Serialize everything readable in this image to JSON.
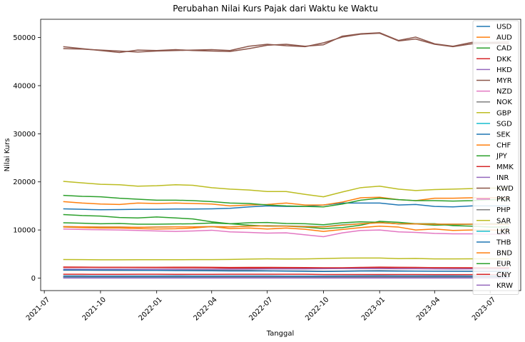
{
  "chart_data": {
    "type": "line",
    "title": "Perubahan Nilai Kurs Pajak dari Waktu ke Waktu",
    "xlabel": "Tanggal",
    "ylabel": "Nilai Kurs",
    "xlim": [
      "2021-06-25",
      "2023-08-20"
    ],
    "ylim": [
      -2600,
      53800
    ],
    "x_ticks": [
      "2021-07-01",
      "2021-10-01",
      "2022-01-01",
      "2022-04-01",
      "2022-07-01",
      "2022-10-01",
      "2023-01-01",
      "2023-04-01",
      "2023-07-01"
    ],
    "x_tick_labels": [
      "2021-07",
      "2021-10",
      "2022-01",
      "2022-04",
      "2022-07",
      "2022-10",
      "2023-01",
      "2023-04",
      "2023-07"
    ],
    "y_ticks": [
      0,
      10000,
      20000,
      30000,
      40000,
      50000
    ],
    "y_tick_labels": [
      "0",
      "10000",
      "20000",
      "30000",
      "40000",
      "50000"
    ],
    "grid": false,
    "legend_position": "right",
    "x": [
      "2021-08-01",
      "2021-09-01",
      "2021-10-01",
      "2021-11-01",
      "2021-12-01",
      "2022-01-01",
      "2022-02-01",
      "2022-03-01",
      "2022-04-01",
      "2022-05-01",
      "2022-06-01",
      "2022-07-01",
      "2022-08-01",
      "2022-09-01",
      "2022-10-01",
      "2022-11-01",
      "2022-12-01",
      "2023-01-01",
      "2023-02-01",
      "2023-03-01",
      "2023-04-01",
      "2023-05-01",
      "2023-06-01",
      "2023-07-01",
      "2023-08-01"
    ],
    "series": [
      {
        "name": "USD",
        "color": "#1f77b4",
        "values": [
          14400,
          14300,
          14200,
          14250,
          14300,
          14300,
          14350,
          14350,
          14400,
          14500,
          14800,
          15000,
          14900,
          14900,
          15200,
          15600,
          15600,
          15600,
          15200,
          15300,
          14900,
          14800,
          15000,
          15000,
          15000
        ]
      },
      {
        "name": "AUD",
        "color": "#ff7f0e",
        "values": [
          10600,
          10500,
          10400,
          10400,
          10300,
          10200,
          10250,
          10400,
          10700,
          10300,
          10400,
          10200,
          10400,
          10150,
          9700,
          10100,
          10500,
          10800,
          10600,
          10000,
          10200,
          9900,
          10000,
          10000,
          9900
        ]
      },
      {
        "name": "CAD",
        "color": "#2ca02c",
        "values": [
          11500,
          11400,
          11300,
          11350,
          11200,
          11200,
          11250,
          11300,
          11450,
          11300,
          11500,
          11550,
          11350,
          11300,
          11100,
          11500,
          11700,
          11600,
          11250,
          11250,
          11000,
          11100,
          11200,
          11300,
          11300
        ]
      },
      {
        "name": "DKK",
        "color": "#d62728",
        "values": [
          2300,
          2280,
          2250,
          2240,
          2200,
          2180,
          2170,
          2160,
          2140,
          2080,
          2080,
          2030,
          2020,
          1980,
          2000,
          2070,
          2120,
          2190,
          2190,
          2180,
          2150,
          2140,
          2140,
          2150,
          2160
        ]
      },
      {
        "name": "HKD",
        "color": "#9467bd",
        "values": [
          1850,
          1840,
          1830,
          1830,
          1830,
          1830,
          1840,
          1840,
          1840,
          1850,
          1870,
          1900,
          1900,
          1900,
          1940,
          1980,
          1990,
          1990,
          1950,
          1950,
          1900,
          1890,
          1910,
          1910,
          1910
        ]
      },
      {
        "name": "MYR",
        "color": "#8c564b",
        "values": [
          48100,
          47700,
          47300,
          46900,
          47400,
          47300,
          47500,
          47300,
          47200,
          47100,
          47700,
          48400,
          48600,
          48200,
          48500,
          50300,
          50800,
          51000,
          49400,
          50100,
          48700,
          48200,
          49000,
          49000,
          49100
        ]
      },
      {
        "name": "NZD",
        "color": "#e377c2",
        "values": [
          10200,
          10100,
          10050,
          10000,
          9900,
          9800,
          9700,
          9800,
          9950,
          9600,
          9500,
          9350,
          9400,
          9000,
          8600,
          9400,
          9900,
          10000,
          9600,
          9500,
          9300,
          9200,
          9200,
          9100,
          9100
        ]
      },
      {
        "name": "NOK",
        "color": "#7f7f7f",
        "values": [
          1630,
          1630,
          1620,
          1600,
          1590,
          1590,
          1600,
          1610,
          1620,
          1600,
          1590,
          1530,
          1500,
          1480,
          1420,
          1460,
          1520,
          1550,
          1500,
          1460,
          1440,
          1430,
          1420,
          1420,
          1420
        ]
      },
      {
        "name": "GBP",
        "color": "#bcbd22",
        "values": [
          20100,
          19800,
          19500,
          19400,
          19100,
          19200,
          19400,
          19300,
          18800,
          18500,
          18300,
          18000,
          18000,
          17400,
          16900,
          17900,
          18800,
          19100,
          18500,
          18200,
          18400,
          18500,
          18600,
          18700,
          18700
        ]
      },
      {
        "name": "SGD",
        "color": "#17becf",
        "values": [
          10700,
          10650,
          10600,
          10600,
          10550,
          10600,
          10650,
          10650,
          10700,
          10650,
          10800,
          10900,
          10850,
          10750,
          10700,
          11100,
          11300,
          11500,
          11300,
          11300,
          11200,
          11200,
          11200,
          11200,
          11200
        ]
      },
      {
        "name": "SEK",
        "color": "#1f77b4",
        "values": [
          1670,
          1660,
          1650,
          1640,
          1620,
          1600,
          1560,
          1540,
          1520,
          1490,
          1480,
          1480,
          1450,
          1400,
          1370,
          1410,
          1460,
          1470,
          1440,
          1440,
          1430,
          1420,
          1410,
          1400,
          1400
        ]
      },
      {
        "name": "CHF",
        "color": "#ff7f0e",
        "values": [
          15900,
          15600,
          15400,
          15300,
          15600,
          15500,
          15600,
          15500,
          15400,
          15000,
          15200,
          15300,
          15600,
          15200,
          15200,
          15800,
          16700,
          16800,
          16300,
          16100,
          16600,
          16600,
          16700,
          16700,
          16700
        ]
      },
      {
        "name": "JPY",
        "color": "#2ca02c",
        "values": [
          13200,
          13000,
          12900,
          12600,
          12500,
          12700,
          12500,
          12300,
          11700,
          11300,
          11000,
          10800,
          10800,
          10600,
          10300,
          10500,
          11000,
          11800,
          11600,
          11300,
          11300,
          10900,
          10800,
          10600,
          10600
        ]
      },
      {
        "name": "MMK",
        "color": "#d62728",
        "values": [
          800,
          790,
          780,
          780,
          790,
          790,
          780,
          780,
          780,
          790,
          790,
          790,
          790,
          790,
          740,
          740,
          740,
          740,
          740,
          740,
          720,
          720,
          720,
          720,
          720
        ]
      },
      {
        "name": "INR",
        "color": "#9467bd",
        "values": [
          195,
          195,
          193,
          193,
          192,
          193,
          192,
          190,
          189,
          189,
          189,
          189,
          188,
          187,
          187,
          190,
          191,
          190,
          187,
          187,
          183,
          182,
          182,
          183,
          183
        ]
      },
      {
        "name": "KWD",
        "color": "#8c564b",
        "values": [
          47700,
          47600,
          47400,
          47200,
          47000,
          47200,
          47300,
          47400,
          47500,
          47300,
          48200,
          48600,
          48300,
          48100,
          48900,
          50100,
          50700,
          50900,
          49300,
          49700,
          48600,
          48100,
          48700,
          48800,
          48800
        ]
      },
      {
        "name": "PKR",
        "color": "#e377c2",
        "values": [
          87,
          86,
          84,
          82,
          80,
          80,
          80,
          79,
          78,
          74,
          72,
          70,
          67,
          65,
          66,
          69,
          69,
          68,
          60,
          56,
          53,
          52,
          52,
          52,
          52
        ]
      },
      {
        "name": "PHP",
        "color": "#7f7f7f",
        "values": [
          290,
          288,
          286,
          284,
          284,
          283,
          282,
          280,
          278,
          278,
          275,
          270,
          267,
          264,
          265,
          270,
          280,
          282,
          280,
          280,
          276,
          270,
          270,
          272,
          272
        ]
      },
      {
        "name": "SAR",
        "color": "#bcbd22",
        "values": [
          3850,
          3830,
          3800,
          3800,
          3810,
          3810,
          3820,
          3830,
          3840,
          3880,
          3950,
          4000,
          3970,
          3980,
          4060,
          4150,
          4170,
          4170,
          4050,
          4080,
          3990,
          3980,
          4000,
          4000,
          4000
        ]
      },
      {
        "name": "LKR",
        "color": "#17becf",
        "values": [
          72,
          72,
          71,
          71,
          71,
          71,
          72,
          70,
          60,
          40,
          40,
          41,
          41,
          41,
          42,
          43,
          43,
          43,
          42,
          44,
          46,
          47,
          47,
          47,
          47
        ]
      },
      {
        "name": "THB",
        "color": "#1f77b4",
        "values": [
          440,
          435,
          430,
          430,
          428,
          430,
          435,
          432,
          430,
          425,
          428,
          420,
          415,
          410,
          405,
          420,
          440,
          460,
          450,
          445,
          440,
          435,
          432,
          430,
          430
        ]
      },
      {
        "name": "BND",
        "color": "#ff7f0e",
        "values": [
          10700,
          10650,
          10600,
          10600,
          10550,
          10600,
          10650,
          10650,
          10700,
          10650,
          10800,
          10850,
          10800,
          10700,
          10650,
          11000,
          11300,
          11500,
          11300,
          11250,
          11200,
          11200,
          11200,
          11200,
          11200
        ]
      },
      {
        "name": "EUR",
        "color": "#2ca02c",
        "values": [
          17200,
          17000,
          16900,
          16600,
          16400,
          16200,
          16200,
          16100,
          15900,
          15600,
          15500,
          15200,
          15000,
          14900,
          14800,
          15400,
          16200,
          16600,
          16300,
          16100,
          16100,
          16000,
          16100,
          16300,
          16300
        ]
      },
      {
        "name": "CNY",
        "color": "#d62728",
        "values": [
          2220,
          2220,
          2220,
          2230,
          2240,
          2250,
          2260,
          2260,
          2250,
          2200,
          2220,
          2230,
          2210,
          2180,
          2140,
          2140,
          2220,
          2280,
          2240,
          2220,
          2170,
          2140,
          2110,
          2100,
          2100
        ]
      },
      {
        "name": "KRW",
        "color": "#9467bd",
        "values": [
          12,
          12,
          12,
          12,
          12,
          12,
          12,
          12,
          12,
          11,
          11,
          11,
          11,
          11,
          11,
          11,
          12,
          12,
          12,
          12,
          11,
          11,
          11,
          11,
          11
        ]
      }
    ]
  }
}
